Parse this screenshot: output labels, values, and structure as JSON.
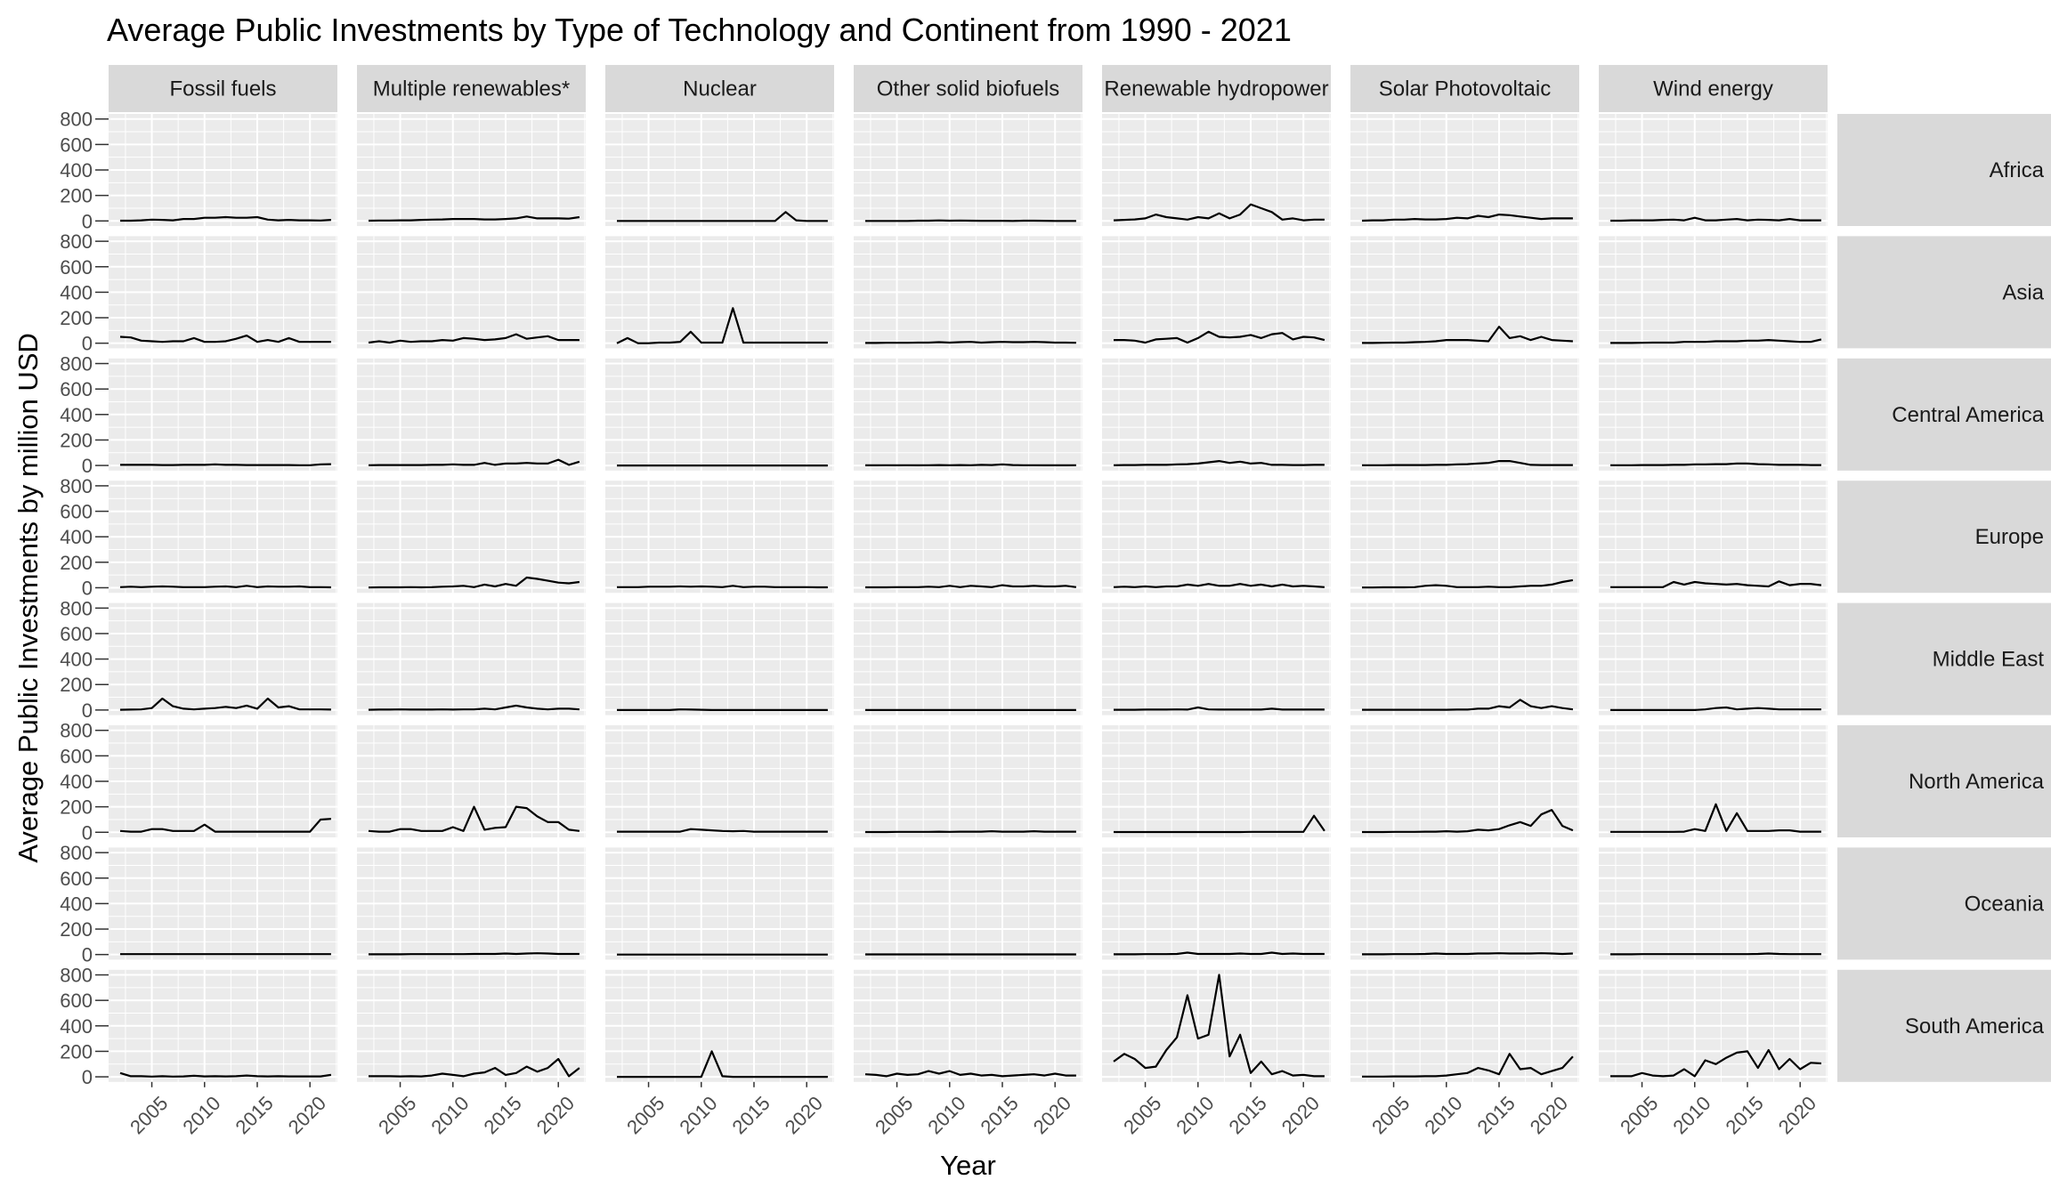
{
  "chart_data": {
    "type": "line",
    "title": "Average Public Investments by Type of Technology and Continent from 1990 - 2021",
    "xlabel": "Year",
    "ylabel": "Average Public Investments by million USD",
    "xlim": [
      2000.9,
      2022.6
    ],
    "ylim": [
      -40,
      840
    ],
    "x_ticks": [
      2005,
      2010,
      2015,
      2020
    ],
    "y_ticks": [
      0,
      200,
      400,
      600,
      800
    ],
    "grid": true,
    "legend": "none",
    "columns": [
      "Fossil fuels",
      "Multiple renewables*",
      "Nuclear",
      "Other solid biofuels",
      "Renewable hydropower",
      "Solar Photovoltaic",
      "Wind energy"
    ],
    "rows": [
      "Africa",
      "Asia",
      "Central America",
      "Europe",
      "Middle East",
      "North America",
      "Oceania",
      "South America"
    ],
    "years": [
      2002,
      2003,
      2004,
      2005,
      2006,
      2007,
      2008,
      2009,
      2010,
      2011,
      2012,
      2013,
      2014,
      2015,
      2016,
      2017,
      2018,
      2019,
      2020,
      2021,
      2022
    ],
    "values": {
      "Africa": {
        "Fossil fuels": [
          2,
          2,
          5,
          10,
          8,
          5,
          15,
          15,
          25,
          25,
          30,
          25,
          25,
          30,
          10,
          5,
          8,
          5,
          5,
          3,
          8
        ],
        "Multiple renewables*": [
          2,
          3,
          3,
          5,
          5,
          8,
          10,
          12,
          15,
          15,
          15,
          12,
          12,
          15,
          20,
          35,
          20,
          20,
          20,
          18,
          30
        ],
        "Nuclear": [
          0,
          0,
          0,
          0,
          0,
          0,
          0,
          0,
          0,
          0,
          0,
          0,
          0,
          0,
          0,
          0,
          70,
          5,
          0,
          0,
          0
        ],
        "Other solid biofuels": [
          0,
          0,
          0,
          0,
          0,
          2,
          2,
          4,
          2,
          3,
          2,
          1,
          1,
          1,
          0,
          2,
          2,
          1,
          0,
          0,
          0
        ],
        "Renewable hydropower": [
          5,
          8,
          12,
          20,
          50,
          30,
          20,
          10,
          30,
          20,
          60,
          20,
          50,
          130,
          100,
          70,
          10,
          20,
          5,
          10,
          10
        ],
        "Solar Photovoltaic": [
          2,
          5,
          5,
          10,
          10,
          15,
          12,
          12,
          15,
          25,
          20,
          40,
          30,
          50,
          45,
          35,
          25,
          15,
          20,
          20,
          20
        ],
        "Wind energy": [
          2,
          2,
          5,
          5,
          5,
          8,
          10,
          5,
          25,
          5,
          5,
          10,
          15,
          5,
          10,
          8,
          5,
          15,
          5,
          5,
          5
        ]
      },
      "Asia": {
        "Fossil fuels": [
          50,
          45,
          20,
          15,
          10,
          15,
          15,
          40,
          10,
          10,
          15,
          35,
          60,
          10,
          25,
          10,
          40,
          10,
          10,
          10,
          10
        ],
        "Multiple renewables*": [
          5,
          15,
          5,
          20,
          10,
          15,
          15,
          25,
          20,
          40,
          35,
          25,
          30,
          40,
          70,
          35,
          45,
          55,
          25,
          25,
          25
        ],
        "Nuclear": [
          0,
          40,
          0,
          0,
          5,
          5,
          10,
          90,
          5,
          5,
          5,
          275,
          5,
          5,
          5,
          5,
          5,
          5,
          5,
          5,
          5
        ],
        "Other solid biofuels": [
          2,
          2,
          3,
          3,
          3,
          5,
          5,
          8,
          5,
          8,
          10,
          5,
          8,
          10,
          8,
          8,
          10,
          8,
          5,
          5,
          3
        ],
        "Renewable hydropower": [
          25,
          25,
          20,
          5,
          30,
          35,
          40,
          5,
          40,
          90,
          50,
          45,
          50,
          65,
          40,
          70,
          80,
          30,
          50,
          45,
          25
        ],
        "Solar Photovoltaic": [
          2,
          2,
          3,
          5,
          5,
          8,
          10,
          15,
          25,
          25,
          25,
          20,
          15,
          130,
          40,
          55,
          25,
          50,
          25,
          20,
          15
        ],
        "Wind energy": [
          2,
          2,
          2,
          3,
          5,
          5,
          5,
          10,
          10,
          10,
          15,
          15,
          15,
          20,
          20,
          25,
          20,
          15,
          10,
          10,
          30
        ]
      },
      "Central America": {
        "Fossil fuels": [
          5,
          5,
          5,
          5,
          3,
          3,
          5,
          5,
          5,
          8,
          5,
          5,
          3,
          3,
          3,
          3,
          3,
          2,
          2,
          8,
          10
        ],
        "Multiple renewables*": [
          2,
          3,
          3,
          3,
          3,
          3,
          5,
          5,
          8,
          5,
          5,
          20,
          5,
          15,
          15,
          20,
          15,
          15,
          45,
          5,
          30
        ],
        "Nuclear": [
          0,
          0,
          0,
          0,
          0,
          0,
          0,
          0,
          0,
          0,
          0,
          0,
          0,
          0,
          0,
          0,
          0,
          0,
          0,
          0,
          0
        ],
        "Other solid biofuels": [
          1,
          1,
          2,
          1,
          2,
          1,
          2,
          3,
          2,
          3,
          2,
          5,
          3,
          8,
          3,
          2,
          2,
          1,
          1,
          1,
          2
        ],
        "Renewable hydropower": [
          2,
          3,
          3,
          5,
          5,
          5,
          8,
          10,
          15,
          25,
          35,
          20,
          30,
          15,
          20,
          5,
          5,
          3,
          3,
          5,
          5
        ],
        "Solar Photovoltaic": [
          2,
          2,
          2,
          3,
          3,
          3,
          3,
          5,
          5,
          8,
          10,
          15,
          20,
          35,
          35,
          20,
          5,
          3,
          3,
          3,
          3
        ],
        "Wind energy": [
          2,
          2,
          2,
          3,
          3,
          3,
          5,
          5,
          8,
          8,
          10,
          10,
          15,
          15,
          10,
          8,
          5,
          5,
          5,
          3,
          3
        ]
      },
      "Europe": {
        "Fossil fuels": [
          5,
          8,
          5,
          8,
          10,
          8,
          5,
          5,
          5,
          8,
          10,
          5,
          15,
          5,
          10,
          8,
          8,
          10,
          5,
          5,
          3
        ],
        "Multiple renewables*": [
          2,
          3,
          3,
          3,
          5,
          3,
          5,
          8,
          10,
          15,
          5,
          25,
          10,
          30,
          15,
          80,
          70,
          55,
          40,
          35,
          45
        ],
        "Nuclear": [
          5,
          5,
          5,
          8,
          8,
          8,
          10,
          8,
          10,
          8,
          5,
          15,
          5,
          8,
          8,
          5,
          5,
          5,
          5,
          3,
          3
        ],
        "Other solid biofuels": [
          3,
          3,
          3,
          5,
          5,
          5,
          8,
          5,
          15,
          5,
          15,
          10,
          5,
          20,
          10,
          10,
          15,
          10,
          10,
          15,
          5
        ],
        "Renewable hydropower": [
          5,
          8,
          5,
          10,
          5,
          10,
          10,
          25,
          15,
          30,
          15,
          15,
          30,
          15,
          25,
          10,
          25,
          10,
          15,
          10,
          5
        ],
        "Solar Photovoltaic": [
          2,
          2,
          3,
          3,
          3,
          5,
          15,
          20,
          15,
          5,
          5,
          5,
          8,
          5,
          5,
          10,
          15,
          15,
          25,
          45,
          60
        ],
        "Wind energy": [
          5,
          5,
          5,
          5,
          5,
          5,
          45,
          25,
          45,
          35,
          30,
          25,
          30,
          20,
          15,
          10,
          50,
          20,
          30,
          30,
          20
        ]
      },
      "Middle East": {
        "Fossil fuels": [
          2,
          3,
          5,
          15,
          90,
          30,
          10,
          5,
          10,
          15,
          25,
          15,
          35,
          10,
          90,
          20,
          30,
          5,
          5,
          5,
          3
        ],
        "Multiple renewables*": [
          2,
          3,
          3,
          5,
          3,
          3,
          3,
          5,
          3,
          5,
          5,
          10,
          5,
          20,
          35,
          20,
          10,
          5,
          10,
          10,
          5
        ],
        "Nuclear": [
          0,
          0,
          0,
          0,
          0,
          0,
          5,
          3,
          2,
          0,
          0,
          0,
          0,
          0,
          0,
          0,
          0,
          0,
          0,
          0,
          0
        ],
        "Other solid biofuels": [
          0,
          0,
          0,
          0,
          0,
          0,
          0,
          0,
          0,
          0,
          0,
          0,
          0,
          0,
          0,
          0,
          0,
          0,
          0,
          0,
          0
        ],
        "Renewable hydropower": [
          2,
          2,
          2,
          3,
          3,
          3,
          5,
          3,
          20,
          5,
          3,
          3,
          3,
          3,
          3,
          10,
          3,
          3,
          3,
          3,
          3
        ],
        "Solar Photovoltaic": [
          2,
          2,
          2,
          2,
          2,
          2,
          2,
          2,
          2,
          3,
          3,
          10,
          10,
          30,
          20,
          80,
          30,
          15,
          30,
          15,
          5
        ],
        "Wind energy": [
          0,
          0,
          0,
          0,
          0,
          0,
          0,
          0,
          0,
          5,
          15,
          20,
          5,
          10,
          15,
          10,
          5,
          5,
          5,
          5,
          5
        ]
      },
      "North America": {
        "Fossil fuels": [
          10,
          5,
          5,
          25,
          25,
          10,
          10,
          10,
          60,
          5,
          5,
          5,
          5,
          5,
          5,
          5,
          5,
          5,
          5,
          100,
          105
        ],
        "Multiple renewables*": [
          10,
          5,
          5,
          25,
          25,
          10,
          10,
          10,
          40,
          10,
          200,
          20,
          35,
          40,
          200,
          190,
          125,
          80,
          80,
          20,
          10
        ],
        "Nuclear": [
          5,
          5,
          5,
          5,
          5,
          5,
          5,
          25,
          20,
          15,
          10,
          8,
          10,
          5,
          5,
          5,
          5,
          5,
          5,
          5,
          5
        ],
        "Other solid biofuels": [
          2,
          2,
          2,
          3,
          3,
          3,
          3,
          5,
          3,
          5,
          5,
          5,
          8,
          5,
          5,
          5,
          8,
          5,
          5,
          5,
          5
        ],
        "Renewable hydropower": [
          2,
          2,
          2,
          2,
          2,
          2,
          2,
          2,
          2,
          2,
          2,
          2,
          2,
          3,
          3,
          3,
          3,
          3,
          3,
          130,
          10
        ],
        "Solar Photovoltaic": [
          2,
          2,
          2,
          3,
          3,
          3,
          5,
          5,
          8,
          5,
          8,
          20,
          15,
          25,
          55,
          80,
          50,
          140,
          175,
          50,
          15
        ],
        "Wind energy": [
          3,
          3,
          3,
          3,
          3,
          3,
          3,
          5,
          25,
          10,
          220,
          10,
          150,
          10,
          10,
          10,
          15,
          15,
          5,
          5,
          5
        ]
      },
      "Oceania": {
        "Fossil fuels": [
          3,
          3,
          3,
          3,
          3,
          3,
          3,
          3,
          3,
          3,
          3,
          3,
          3,
          3,
          3,
          3,
          3,
          3,
          3,
          3,
          3
        ],
        "Multiple renewables*": [
          2,
          2,
          2,
          2,
          3,
          3,
          3,
          3,
          3,
          3,
          5,
          5,
          5,
          8,
          5,
          8,
          10,
          8,
          5,
          5,
          5
        ],
        "Nuclear": [
          0,
          0,
          0,
          0,
          0,
          0,
          0,
          0,
          0,
          0,
          0,
          0,
          0,
          0,
          0,
          0,
          0,
          0,
          0,
          0,
          0
        ],
        "Other solid biofuels": [
          1,
          1,
          1,
          1,
          1,
          1,
          1,
          1,
          1,
          1,
          1,
          1,
          1,
          1,
          1,
          1,
          1,
          1,
          1,
          1,
          1
        ],
        "Renewable hydropower": [
          2,
          2,
          2,
          3,
          3,
          3,
          5,
          15,
          5,
          5,
          5,
          5,
          8,
          5,
          5,
          15,
          5,
          8,
          5,
          5,
          5
        ],
        "Solar Photovoltaic": [
          2,
          2,
          2,
          3,
          3,
          3,
          5,
          8,
          5,
          5,
          5,
          8,
          8,
          10,
          8,
          8,
          8,
          10,
          8,
          5,
          8
        ],
        "Wind energy": [
          2,
          2,
          2,
          3,
          3,
          3,
          3,
          3,
          3,
          3,
          3,
          3,
          3,
          3,
          5,
          8,
          5,
          3,
          3,
          3,
          3
        ]
      },
      "South America": {
        "Fossil fuels": [
          30,
          5,
          5,
          2,
          5,
          2,
          3,
          8,
          3,
          5,
          3,
          5,
          10,
          5,
          3,
          5,
          3,
          3,
          3,
          3,
          15
        ],
        "Multiple renewables*": [
          5,
          5,
          5,
          3,
          5,
          3,
          10,
          25,
          15,
          5,
          25,
          35,
          70,
          15,
          30,
          80,
          40,
          70,
          140,
          5,
          70
        ],
        "Nuclear": [
          0,
          0,
          0,
          0,
          0,
          0,
          0,
          0,
          0,
          200,
          5,
          0,
          0,
          0,
          0,
          0,
          0,
          0,
          0,
          0,
          0
        ],
        "Other solid biofuels": [
          20,
          15,
          5,
          25,
          15,
          20,
          45,
          25,
          45,
          15,
          25,
          10,
          15,
          5,
          10,
          15,
          20,
          10,
          25,
          10,
          10
        ],
        "Renewable hydropower": [
          120,
          180,
          140,
          70,
          80,
          210,
          310,
          640,
          300,
          330,
          800,
          160,
          330,
          30,
          120,
          20,
          45,
          10,
          15,
          5,
          5
        ],
        "Solar Photovoltaic": [
          2,
          2,
          2,
          3,
          3,
          3,
          5,
          5,
          10,
          20,
          30,
          70,
          50,
          20,
          180,
          60,
          70,
          20,
          45,
          70,
          160
        ],
        "Wind energy": [
          5,
          5,
          5,
          30,
          10,
          5,
          10,
          60,
          5,
          130,
          100,
          150,
          190,
          200,
          70,
          210,
          60,
          140,
          60,
          110,
          105
        ]
      }
    }
  }
}
